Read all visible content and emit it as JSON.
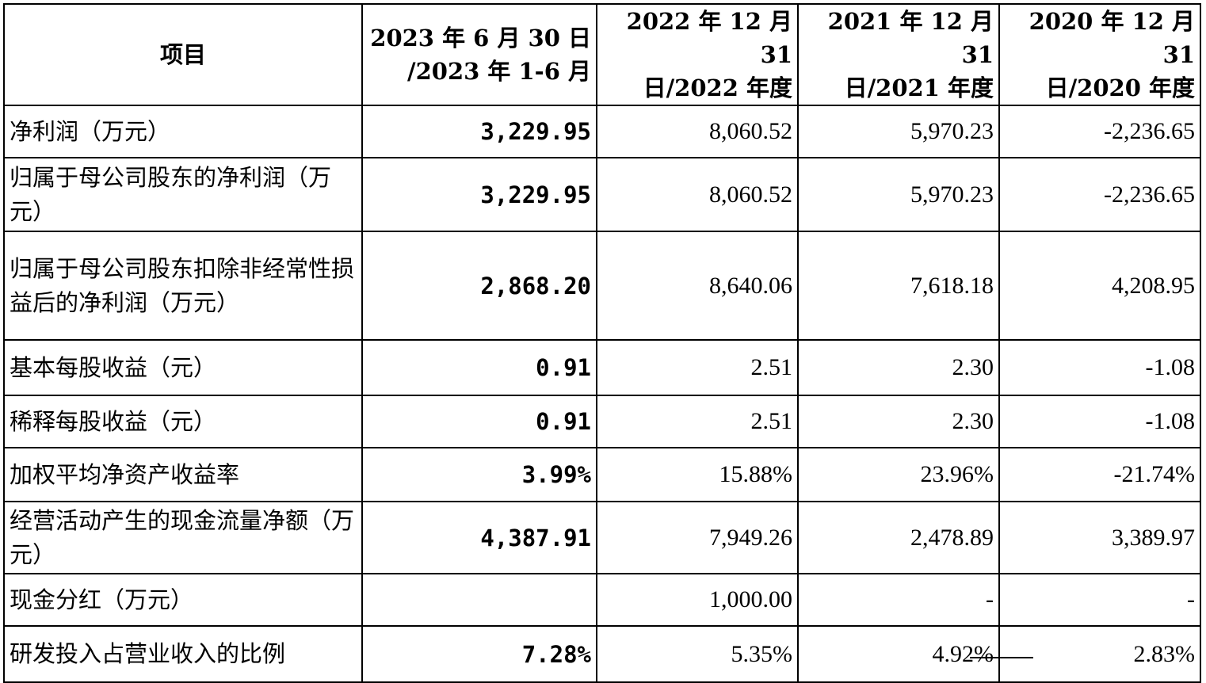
{
  "table": {
    "header": {
      "item": "项目",
      "periods": [
        {
          "line1": "2023 年 6 月 30 日",
          "line2": "/2023 年 1-6 月"
        },
        {
          "line1": "2022 年 12 月 31",
          "line2": "日/2022 年度"
        },
        {
          "line1": "2021 年 12 月 31",
          "line2": "日/2021 年度"
        },
        {
          "line1": "2020 年 12 月 31",
          "line2": "日/2020 年度"
        }
      ]
    },
    "rows": [
      {
        "label": "净利润（万元）",
        "values": [
          "3,229.95",
          "8,060.52",
          "5,970.23",
          "-2,236.65"
        ]
      },
      {
        "label": "归属于母公司股东的净利润（万元）",
        "values": [
          "3,229.95",
          "8,060.52",
          "5,970.23",
          "-2,236.65"
        ]
      },
      {
        "label": "归属于母公司股东扣除非经常性损益后的净利润（万元）",
        "values": [
          "2,868.20",
          "8,640.06",
          "7,618.18",
          "4,208.95"
        ]
      },
      {
        "label": "基本每股收益（元）",
        "values": [
          "0.91",
          "2.51",
          "2.30",
          "-1.08"
        ]
      },
      {
        "label": "稀释每股收益（元）",
        "values": [
          "0.91",
          "2.51",
          "2.30",
          "-1.08"
        ]
      },
      {
        "label": "加权平均净资产收益率",
        "values": [
          "3.99%",
          "15.88%",
          "23.96%",
          "-21.74%"
        ]
      },
      {
        "label": "经营活动产生的现金流量净额（万元）",
        "values": [
          "4,387.91",
          "7,949.26",
          "2,478.89",
          "3,389.97"
        ]
      },
      {
        "label": "现金分红（万元）",
        "values": [
          "",
          "1,000.00",
          "-",
          "-"
        ]
      },
      {
        "label": "研发投入占营业收入的比例",
        "values": [
          "7.28%",
          "5.35%",
          "4.92%",
          "2.83%"
        ]
      }
    ]
  }
}
